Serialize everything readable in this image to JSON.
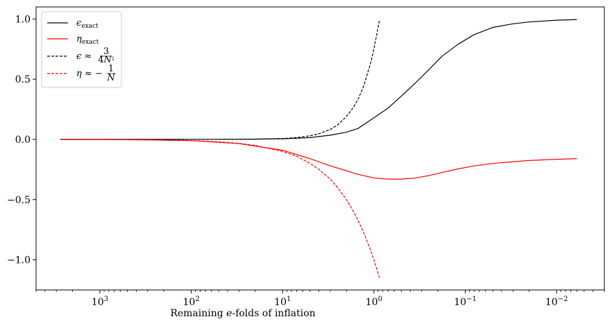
{
  "chart_data": {
    "type": "line",
    "title": "",
    "xlabel": "Remaining e-folds of inflation",
    "ylabel": "",
    "x_scale": "log",
    "x_reversed": true,
    "xlim": [
      5000,
      0.003
    ],
    "ylim": [
      -1.25,
      1.1
    ],
    "x_ticks": [
      {
        "value": 1000,
        "label": "10^3"
      },
      {
        "value": 100,
        "label": "10^2"
      },
      {
        "value": 10,
        "label": "10^1"
      },
      {
        "value": 1,
        "label": "10^0"
      },
      {
        "value": 0.1,
        "label": "10^-1"
      },
      {
        "value": 0.01,
        "label": "10^-2"
      }
    ],
    "y_ticks": [
      {
        "value": 1.0,
        "label": "1.0"
      },
      {
        "value": 0.5,
        "label": "0.5"
      },
      {
        "value": 0.0,
        "label": "0.0"
      },
      {
        "value": -0.5,
        "label": "−0.5"
      },
      {
        "value": -1.0,
        "label": "−1.0"
      }
    ],
    "grid": false,
    "legend_position": "upper-left",
    "series": [
      {
        "name": "ε_exact",
        "color": "#000000",
        "dash": "solid",
        "x": [
          2700,
          1000,
          300,
          100,
          30,
          10,
          5,
          3,
          2,
          1.5,
          1,
          0.7,
          0.5,
          0.35,
          0.25,
          0.18,
          0.12,
          0.08,
          0.05,
          0.03,
          0.02,
          0.01,
          0.006
        ],
        "y": [
          0.0,
          0.0,
          0.0001,
          0.0003,
          0.001,
          0.005,
          0.015,
          0.035,
          0.06,
          0.09,
          0.18,
          0.26,
          0.36,
          0.47,
          0.58,
          0.69,
          0.79,
          0.87,
          0.93,
          0.96,
          0.975,
          0.99,
          0.995
        ]
      },
      {
        "name": "η_exact",
        "color": "#ff0000",
        "dash": "solid",
        "x": [
          2700,
          1000,
          300,
          100,
          30,
          10,
          5,
          3,
          2,
          1.5,
          1,
          0.7,
          0.5,
          0.35,
          0.25,
          0.18,
          0.12,
          0.08,
          0.05,
          0.03,
          0.02,
          0.01,
          0.006
        ],
        "y": [
          0.0,
          -0.001,
          -0.004,
          -0.01,
          -0.035,
          -0.09,
          -0.16,
          -0.22,
          -0.26,
          -0.29,
          -0.32,
          -0.33,
          -0.33,
          -0.32,
          -0.3,
          -0.275,
          -0.245,
          -0.22,
          -0.2,
          -0.185,
          -0.175,
          -0.165,
          -0.16
        ]
      },
      {
        "name": "ε ≈ 3/(4N²)",
        "color": "#000000",
        "dash": "dashed",
        "x": [
          2700,
          1000,
          300,
          100,
          50,
          30,
          20,
          10,
          7,
          5,
          4,
          3,
          2.5,
          2,
          1.7,
          1.5,
          1.3,
          1.1,
          1.0,
          0.87
        ],
        "y": [
          0.0,
          0.0,
          0.0,
          0.0001,
          0.0003,
          0.0008,
          0.0019,
          0.0075,
          0.015,
          0.03,
          0.047,
          0.083,
          0.12,
          0.19,
          0.26,
          0.33,
          0.44,
          0.62,
          0.75,
          0.99
        ]
      },
      {
        "name": "η ≈ −1/N",
        "color": "#ff0000",
        "dash": "dashed",
        "x": [
          2700,
          1000,
          300,
          100,
          50,
          30,
          20,
          10,
          7,
          5,
          4,
          3,
          2.5,
          2,
          1.7,
          1.5,
          1.3,
          1.1,
          1.0,
          0.87
        ],
        "y": [
          -0.0004,
          -0.001,
          -0.0033,
          -0.01,
          -0.02,
          -0.033,
          -0.05,
          -0.1,
          -0.14,
          -0.2,
          -0.25,
          -0.33,
          -0.4,
          -0.5,
          -0.59,
          -0.67,
          -0.77,
          -0.91,
          -1.0,
          -1.15
        ]
      }
    ]
  }
}
